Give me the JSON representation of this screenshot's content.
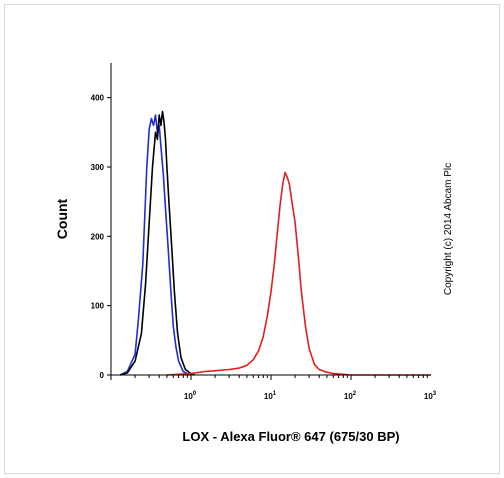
{
  "chart_data": {
    "type": "line",
    "xlabel": "LOX - Alexa Fluor® 647 (675/30 BP)",
    "ylabel": "Count",
    "x_scale": "log",
    "xlim": [
      0.1,
      1000
    ],
    "ylim": [
      0,
      450
    ],
    "grid": false,
    "legend": "none",
    "y_ticks": [
      {
        "value": 0,
        "label": "0"
      },
      {
        "value": 100,
        "label": "100"
      },
      {
        "value": 200,
        "label": "200"
      },
      {
        "value": 300,
        "label": "300"
      },
      {
        "value": 400,
        "label": "400"
      }
    ],
    "x_ticks": [
      {
        "value": 1,
        "base": "10",
        "exp": "0"
      },
      {
        "value": 10,
        "base": "10",
        "exp": "1"
      },
      {
        "value": 100,
        "base": "10",
        "exp": "2"
      },
      {
        "value": 1000,
        "base": "10",
        "exp": "3"
      }
    ],
    "series": [
      {
        "color": "#1f2fd0",
        "x": [
          0.13,
          0.16,
          0.2,
          0.22,
          0.25,
          0.28,
          0.3,
          0.32,
          0.34,
          0.36,
          0.38,
          0.4,
          0.42,
          0.45,
          0.48,
          0.52,
          0.56,
          0.6,
          0.65,
          0.7,
          0.8,
          0.9,
          1.0
        ],
        "y": [
          0,
          5,
          30,
          80,
          160,
          300,
          355,
          370,
          360,
          375,
          350,
          360,
          330,
          290,
          240,
          180,
          120,
          70,
          40,
          20,
          5,
          2,
          0
        ]
      },
      {
        "color": "#000000",
        "x": [
          0.13,
          0.16,
          0.2,
          0.24,
          0.27,
          0.3,
          0.33,
          0.36,
          0.38,
          0.4,
          0.42,
          0.44,
          0.46,
          0.48,
          0.5,
          0.53,
          0.57,
          0.62,
          0.68,
          0.75,
          0.85,
          1.0,
          1.1
        ],
        "y": [
          0,
          3,
          20,
          60,
          130,
          220,
          300,
          350,
          340,
          375,
          360,
          380,
          365,
          340,
          300,
          250,
          190,
          120,
          60,
          25,
          8,
          2,
          0
        ]
      },
      {
        "color": "#e02020",
        "x": [
          0.5,
          1,
          1.5,
          2,
          3,
          4,
          5,
          6,
          7,
          8,
          9,
          10,
          11,
          12,
          13,
          14,
          15,
          16,
          17,
          18,
          20,
          22,
          24,
          27,
          30,
          35,
          40,
          50,
          60,
          80,
          100,
          200,
          1000
        ],
        "y": [
          0,
          2,
          5,
          6,
          8,
          10,
          14,
          22,
          35,
          55,
          85,
          120,
          160,
          205,
          245,
          275,
          292,
          285,
          275,
          255,
          220,
          170,
          120,
          70,
          38,
          15,
          8,
          4,
          2,
          1,
          0,
          0,
          0
        ]
      }
    ]
  },
  "copyright": "Copyright (c) 2014 Abcam Plc"
}
